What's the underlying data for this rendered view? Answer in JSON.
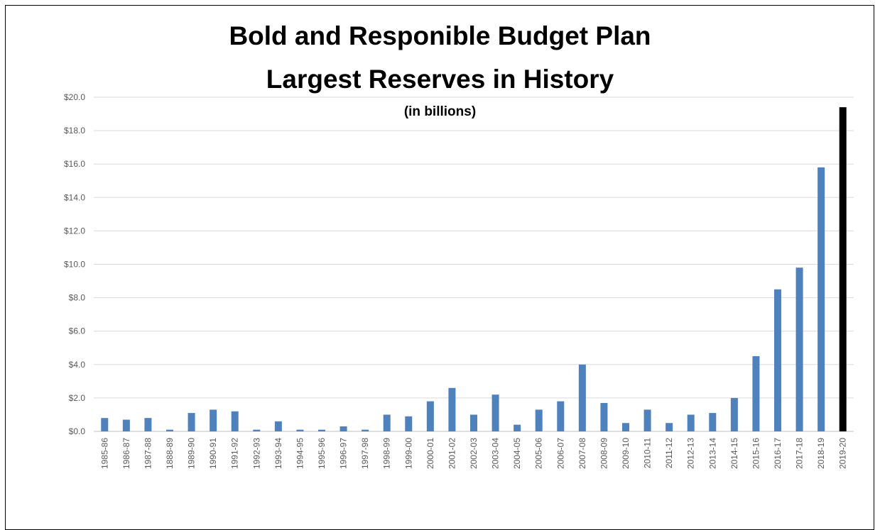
{
  "chart_data": {
    "type": "bar",
    "title": "Bold and Responible Budget Plan",
    "subtitle": "Largest Reserves in History",
    "units_note": "(in billions)",
    "xlabel": "",
    "ylabel": "",
    "ylim": [
      0,
      20
    ],
    "yticks": [
      "$0.0",
      "$2.0",
      "$4.0",
      "$6.0",
      "$8.0",
      "$10.0",
      "$12.0",
      "$14.0",
      "$16.0",
      "$18.0",
      "$20.0"
    ],
    "grid": true,
    "legend": "none",
    "bar_color": "#4f81bd",
    "highlight_color": "#000000",
    "highlight_index": 34,
    "categories": [
      "1985-86",
      "1986-87",
      "1987-88",
      "1888-89",
      "1989-90",
      "1990-91",
      "1991-92",
      "1992-93",
      "1993-94",
      "1994-95",
      "1995-96",
      "1996-97",
      "1997-98",
      "1998-99",
      "1999-00",
      "2000-01",
      "2001-02",
      "2002-03",
      "2003-04",
      "2004-05",
      "2005-06",
      "2006-07",
      "2007-08",
      "2008-09",
      "2009-10",
      "2010-11",
      "2011-12",
      "2012-13",
      "2013-14",
      "2014-15",
      "2015-16",
      "2016-17",
      "2017-18",
      "2018-19",
      "2019-20"
    ],
    "values": [
      0.8,
      0.7,
      0.8,
      0.1,
      1.1,
      1.3,
      1.2,
      0.1,
      0.6,
      0.1,
      0.1,
      0.3,
      0.1,
      1.0,
      0.9,
      1.8,
      2.6,
      1.0,
      2.2,
      0.4,
      1.3,
      1.8,
      4.0,
      1.7,
      0.5,
      1.3,
      0.5,
      1.0,
      1.1,
      2.0,
      4.5,
      8.5,
      9.8,
      15.8,
      19.4
    ]
  }
}
